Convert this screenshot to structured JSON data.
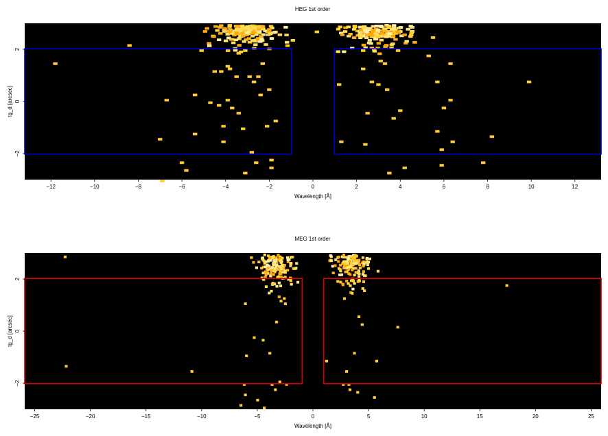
{
  "chart_data": [
    {
      "type": "heatmap",
      "title": "HEG 1st order",
      "xlabel": "Wavelength [Å]",
      "ylabel": "tg_d [arcsec]",
      "xlim": [
        -13.2,
        13.2
      ],
      "ylim": [
        -3.0,
        3.0
      ],
      "xticks": [
        -12,
        -10,
        -8,
        -6,
        -4,
        -2,
        0,
        2,
        4,
        6,
        8,
        10,
        12
      ],
      "xtick_labels": [
        "−12",
        "−10",
        "−8",
        "−6",
        "−4",
        "−2",
        "0",
        "2",
        "4",
        "6",
        "8",
        "10",
        "12"
      ],
      "yticks": [
        -2,
        0,
        2
      ],
      "ytick_labels": [
        "−2",
        "0",
        "2"
      ],
      "background": "#000000",
      "region_color": "#0000cc",
      "regions": [
        {
          "x": [
            -13.2,
            -0.97
          ],
          "y": [
            -2.02,
            2.02
          ]
        },
        {
          "x": [
            0.97,
            13.2
          ],
          "y": [
            -2.02,
            2.02
          ]
        }
      ],
      "clusters": [
        {
          "cx": -3.1,
          "cy": 2.6,
          "sx": 0.75,
          "sy": 0.28,
          "n": 160
        },
        {
          "cx": 2.8,
          "cy": 2.55,
          "sx": 0.75,
          "sy": 0.28,
          "n": 150
        }
      ],
      "pixel_size": [
        0.2,
        0.1
      ],
      "events": [
        [
          -11.9,
          1.5
        ],
        [
          -8.5,
          2.2
        ],
        [
          -6.8,
          0.1
        ],
        [
          -7.1,
          -1.4
        ],
        [
          -6.1,
          -2.3
        ],
        [
          -5.9,
          -2.6
        ],
        [
          -7.0,
          -3.0
        ],
        [
          -5.5,
          0.3
        ],
        [
          -5.2,
          2.0
        ],
        [
          -4.8,
          0.0
        ],
        [
          -4.4,
          -0.1
        ],
        [
          -4.2,
          -0.9
        ],
        [
          -4.3,
          1.2
        ],
        [
          -4.0,
          1.4
        ],
        [
          -4.0,
          0.1
        ],
        [
          -3.8,
          -0.2
        ],
        [
          -3.6,
          1.0
        ],
        [
          -3.5,
          -0.4
        ],
        [
          -3.3,
          -1.0
        ],
        [
          -3.0,
          1.0
        ],
        [
          -2.9,
          -1.9
        ],
        [
          -2.8,
          0.8
        ],
        [
          -2.6,
          1.0
        ],
        [
          -2.5,
          0.3
        ],
        [
          -2.4,
          1.5
        ],
        [
          -2.2,
          -0.9
        ],
        [
          -2.1,
          0.5
        ],
        [
          -1.8,
          -0.7
        ],
        [
          -3.2,
          -2.7
        ],
        [
          -2.7,
          -2.3
        ],
        [
          -2.0,
          -2.5
        ],
        [
          -2.0,
          -2.2
        ],
        [
          -5.5,
          -1.2
        ],
        [
          -4.2,
          -1.5
        ],
        [
          -3.9,
          1.3
        ],
        [
          -3.5,
          1.9
        ],
        [
          -3.2,
          2.0
        ],
        [
          -4.6,
          1.2
        ],
        [
          1.1,
          0.7
        ],
        [
          1.2,
          -1.5
        ],
        [
          2.2,
          1.3
        ],
        [
          2.3,
          -1.6
        ],
        [
          2.4,
          -0.4
        ],
        [
          2.6,
          0.8
        ],
        [
          2.9,
          0.7
        ],
        [
          3.0,
          1.6
        ],
        [
          3.2,
          1.5
        ],
        [
          3.3,
          0.5
        ],
        [
          3.4,
          -2.7
        ],
        [
          3.6,
          -0.6
        ],
        [
          3.9,
          -0.3
        ],
        [
          4.1,
          -2.5
        ],
        [
          5.2,
          1.8
        ],
        [
          5.4,
          2.5
        ],
        [
          5.6,
          -1.1
        ],
        [
          5.6,
          0.8
        ],
        [
          5.8,
          -2.4
        ],
        [
          5.8,
          -1.8
        ],
        [
          5.9,
          -0.2
        ],
        [
          6.2,
          0.1
        ],
        [
          6.2,
          1.5
        ],
        [
          7.7,
          -2.3
        ],
        [
          8.1,
          -1.3
        ],
        [
          9.8,
          0.8
        ],
        [
          6.3,
          -1.5
        ],
        [
          3.8,
          2.0
        ],
        [
          4.4,
          2.6
        ],
        [
          2.2,
          2.0
        ],
        [
          2.6,
          2.1
        ],
        [
          3.5,
          2.1
        ]
      ]
    },
    {
      "type": "heatmap",
      "title": "MEG 1st order",
      "xlabel": "Wavelength [Å]",
      "ylabel": "tg_d [arcsec]",
      "xlim": [
        -25.9,
        25.9
      ],
      "ylim": [
        -3.0,
        3.0
      ],
      "xticks": [
        -25,
        -20,
        -15,
        -10,
        -5,
        0,
        5,
        10,
        15,
        20,
        25
      ],
      "xtick_labels": [
        "−25",
        "−20",
        "−15",
        "−10",
        "−5",
        "0",
        "5",
        "10",
        "15",
        "20",
        "25"
      ],
      "yticks": [
        -2,
        0,
        2
      ],
      "ytick_labels": [
        "−2",
        "0",
        "2"
      ],
      "background": "#000000",
      "region_color": "#dd0000",
      "regions": [
        {
          "x": [
            -25.9,
            -0.97
          ],
          "y": [
            -2.02,
            2.02
          ]
        },
        {
          "x": [
            0.97,
            25.9
          ],
          "y": [
            -2.02,
            2.02
          ]
        }
      ],
      "clusters": [
        {
          "cx": -3.6,
          "cy": 2.35,
          "sx": 0.8,
          "sy": 0.42,
          "n": 150
        },
        {
          "cx": 3.2,
          "cy": 2.45,
          "sx": 0.8,
          "sy": 0.36,
          "n": 150
        }
      ],
      "pixel_size": [
        0.26,
        0.1
      ],
      "events": [
        [
          -22.4,
          2.9
        ],
        [
          -22.3,
          -1.3
        ],
        [
          -11.0,
          -1.5
        ],
        [
          -6.6,
          -2.8
        ],
        [
          -6.3,
          -2.0
        ],
        [
          -6.2,
          -2.4
        ],
        [
          -6.1,
          -0.9
        ],
        [
          -6.2,
          1.1
        ],
        [
          -5.4,
          -0.2
        ],
        [
          -4.6,
          -0.3
        ],
        [
          -4.0,
          -0.8
        ],
        [
          -3.4,
          0.4
        ],
        [
          -3.0,
          1.2
        ],
        [
          -2.6,
          1.1
        ],
        [
          -2.5,
          -2.0
        ],
        [
          -3.8,
          -2.0
        ],
        [
          -3.5,
          -2.2
        ],
        [
          -4.5,
          -2.9
        ],
        [
          -5.1,
          -2.6
        ],
        [
          -3.1,
          -1.9
        ],
        [
          -2.7,
          1.3
        ],
        [
          1.1,
          -1.1
        ],
        [
          2.6,
          -2.0
        ],
        [
          2.9,
          -1.5
        ],
        [
          3.2,
          -2.2
        ],
        [
          3.6,
          -0.8
        ],
        [
          4.0,
          0.6
        ],
        [
          4.3,
          0.3
        ],
        [
          4.5,
          1.6
        ],
        [
          5.4,
          -2.5
        ],
        [
          5.6,
          -1.1
        ],
        [
          7.5,
          0.2
        ],
        [
          17.3,
          1.8
        ],
        [
          3.1,
          -2.0
        ],
        [
          3.9,
          -2.3
        ],
        [
          2.7,
          1.3
        ],
        [
          3.4,
          1.5
        ]
      ]
    }
  ]
}
